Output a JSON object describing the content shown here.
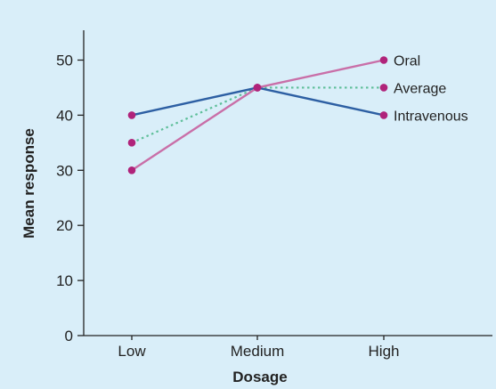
{
  "chart_data": {
    "type": "line",
    "categories": [
      "Low",
      "Medium",
      "High"
    ],
    "xlabel": "Dosage",
    "ylabel": "Mean response",
    "ylim": [
      0,
      55
    ],
    "yticks": [
      0,
      10,
      20,
      30,
      40,
      50
    ],
    "grid": false,
    "series": [
      {
        "name": "Intravenous",
        "values": [
          40,
          45,
          40
        ],
        "color": "#2d5fa3",
        "dashed": false
      },
      {
        "name": "Oral",
        "values": [
          30,
          45,
          50
        ],
        "color": "#c96fa8",
        "dashed": false
      },
      {
        "name": "Average",
        "values": [
          35,
          45,
          45
        ],
        "color": "#5fbf9a",
        "dashed": true
      }
    ],
    "marker_color": "#b0237a",
    "label_order": [
      "Oral",
      "Average",
      "Intravenous"
    ]
  }
}
